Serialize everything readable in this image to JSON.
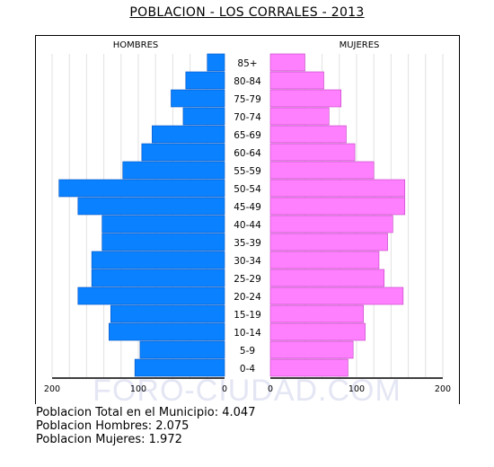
{
  "chart_data": {
    "type": "bar",
    "title": "POBLACION - LOS CORRALES - 2013",
    "left_label": "HOMBRES",
    "right_label": "MUJERES",
    "categories": [
      "85+",
      "80-84",
      "75-79",
      "70-74",
      "65-69",
      "60-64",
      "55-59",
      "50-54",
      "45-49",
      "40-44",
      "35-39",
      "30-34",
      "25-29",
      "20-24",
      "15-19",
      "10-14",
      "5-9",
      "0-4"
    ],
    "series": [
      {
        "name": "HOMBRES",
        "color": "#0a82ff",
        "values": [
          20,
          45,
          62,
          48,
          84,
          96,
          118,
          192,
          170,
          142,
          142,
          154,
          154,
          170,
          132,
          134,
          98,
          104
        ]
      },
      {
        "name": "MUJERES",
        "color": "#ff80ff",
        "values": [
          40,
          62,
          82,
          68,
          88,
          98,
          120,
          156,
          156,
          142,
          136,
          126,
          132,
          154,
          108,
          110,
          96,
          90
        ]
      }
    ],
    "left_ticks": [
      "200",
      "100",
      "0"
    ],
    "right_ticks": [
      "0",
      "100",
      "200"
    ],
    "xlim": [
      0,
      200
    ],
    "grid": true,
    "watermark": "FORO-CIUDAD.COM"
  },
  "stats": {
    "total": "Poblacion Total en el Municipio: 4.047",
    "men": "Poblacion Hombres: 2.075",
    "women": "Poblacion Mujeres: 1.972"
  }
}
